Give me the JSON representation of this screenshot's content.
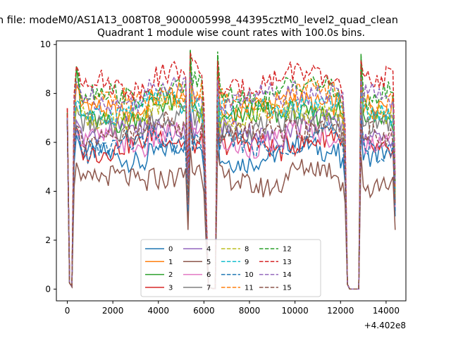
{
  "chart_data": {
    "type": "line",
    "suptitle": "n file: modeM0/AS1A13_008T08_9000005998_44395cztM0_level2_quad_clean",
    "title": "Quadrant 1 module wise count rates with 100.0s bins.",
    "xlabel": "",
    "ylabel": "",
    "x_offset_label": "+4.402e8",
    "xlim": [
      -480,
      14870
    ],
    "ylim": [
      -0.48,
      10.15
    ],
    "xticks": [
      0,
      2000,
      4000,
      6000,
      8000,
      10000,
      12000,
      14000
    ],
    "yticks": [
      0,
      2,
      4,
      6,
      8,
      10
    ],
    "grid": false,
    "legend": {
      "placement": "lower-center",
      "columns": 4
    },
    "series": [
      {
        "name": "0",
        "color": "#1f77b4",
        "style": "solid",
        "level": 5.4,
        "start": 6.8,
        "peak": 6.6
      },
      {
        "name": "1",
        "color": "#ff7f0e",
        "style": "solid",
        "level": 7.4,
        "start": 7.1,
        "peak": 8.6
      },
      {
        "name": "2",
        "color": "#2ca02c",
        "style": "solid",
        "level": 7.0,
        "start": 7.2,
        "peak": 9.6
      },
      {
        "name": "3",
        "color": "#d62728",
        "style": "solid",
        "level": 5.8,
        "start": 7.4,
        "peak": 6.9
      },
      {
        "name": "4",
        "color": "#9467bd",
        "style": "solid",
        "level": 6.4,
        "start": 7.0,
        "peak": 7.3
      },
      {
        "name": "5",
        "color": "#8c564b",
        "style": "solid",
        "level": 4.4,
        "start": 6.9,
        "peak": 5.6
      },
      {
        "name": "6",
        "color": "#e377c2",
        "style": "solid",
        "level": 6.0,
        "start": 7.1,
        "peak": 6.6
      },
      {
        "name": "7",
        "color": "#7f7f7f",
        "style": "solid",
        "level": 6.6,
        "start": 7.0,
        "peak": 7.6
      },
      {
        "name": "8",
        "color": "#bcbd22",
        "style": "dashed",
        "level": 7.0,
        "start": 6.9,
        "peak": 7.6
      },
      {
        "name": "9",
        "color": "#17becf",
        "style": "dashed",
        "level": 7.3,
        "start": 7.0,
        "peak": 8.0
      },
      {
        "name": "10",
        "color": "#1f77b4",
        "style": "dashed",
        "level": 5.8,
        "start": 6.8,
        "peak": 7.1
      },
      {
        "name": "11",
        "color": "#ff7f0e",
        "style": "dashed",
        "level": 7.6,
        "start": 7.1,
        "peak": 8.7
      },
      {
        "name": "12",
        "color": "#2ca02c",
        "style": "dashed",
        "level": 7.9,
        "start": 7.2,
        "peak": 9.6
      },
      {
        "name": "13",
        "color": "#d62728",
        "style": "dashed",
        "level": 8.4,
        "start": 7.4,
        "peak": 9.3
      },
      {
        "name": "14",
        "color": "#9467bd",
        "style": "dashed",
        "level": 7.8,
        "start": 7.0,
        "peak": 8.6
      },
      {
        "name": "15",
        "color": "#8c564b",
        "style": "dashed",
        "level": 6.3,
        "start": 6.9,
        "peak": 6.8
      }
    ]
  }
}
